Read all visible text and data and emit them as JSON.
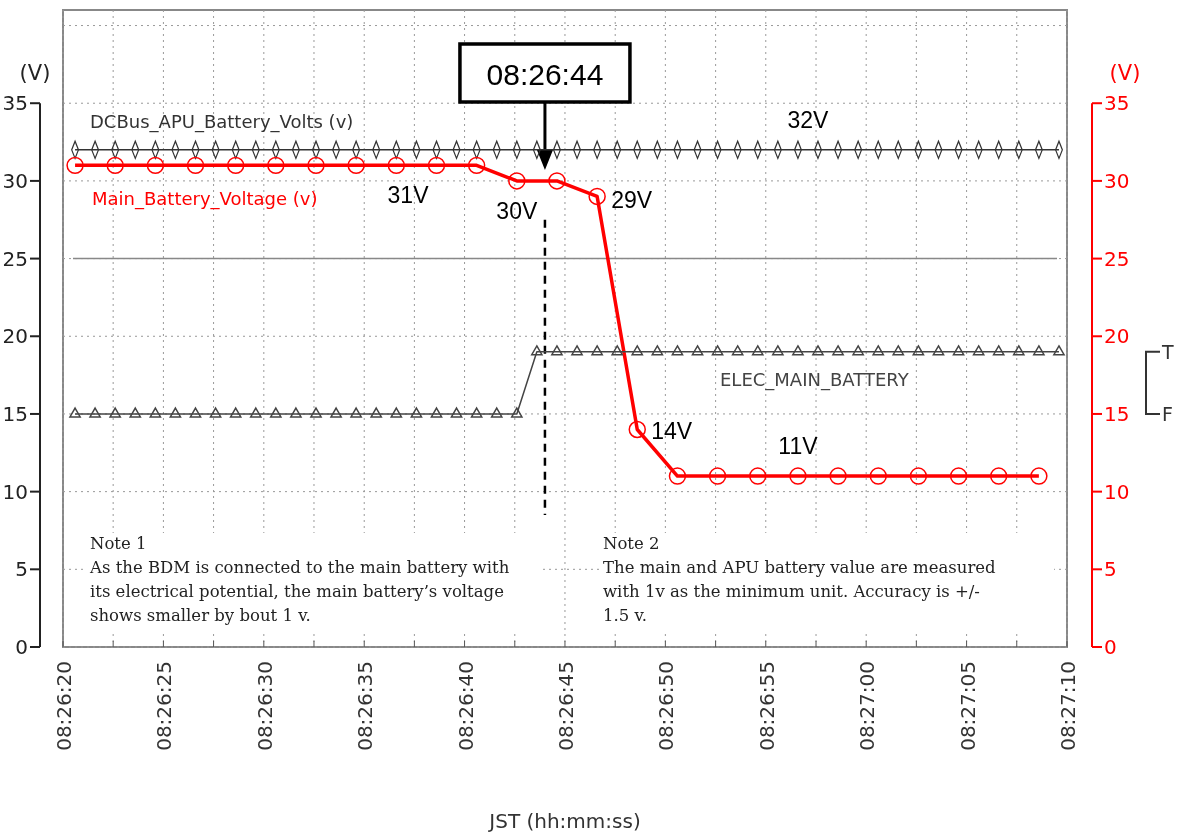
{
  "chart_data": {
    "type": "line",
    "xlabel": "JST (hh:mm:ss)",
    "ylabel": "(V)",
    "y2label": "(V)",
    "xlim": [
      8.438889,
      8.452778
    ],
    "xticks": [
      {
        "value": 8.438889,
        "label": "08:26:20"
      },
      {
        "value": 8.439583,
        "label": null
      },
      {
        "value": 8.440278,
        "label": "08:26:25"
      },
      {
        "value": 8.440972,
        "label": null
      },
      {
        "value": 8.441667,
        "label": "08:26:30"
      },
      {
        "value": 8.442361,
        "label": null
      },
      {
        "value": 8.443056,
        "label": "08:26:35"
      },
      {
        "value": 8.44375,
        "label": null
      },
      {
        "value": 8.444444,
        "label": "08:26:40"
      },
      {
        "value": 8.445139,
        "label": null
      },
      {
        "value": 8.445833,
        "label": "08:26:45"
      },
      {
        "value": 8.446528,
        "label": null
      },
      {
        "value": 8.447222,
        "label": "08:26:50"
      },
      {
        "value": 8.447917,
        "label": null
      },
      {
        "value": 8.448611,
        "label": "08:26:55"
      },
      {
        "value": 8.449306,
        "label": null
      },
      {
        "value": 8.45,
        "label": "08:27:00"
      },
      {
        "value": 8.450694,
        "label": null
      },
      {
        "value": 8.451389,
        "label": "08:27:05"
      },
      {
        "value": 8.452083,
        "label": null
      },
      {
        "value": 8.452778,
        "label": "08:27:10"
      }
    ],
    "ylim": [
      0,
      41
    ],
    "yticks": [
      0,
      5,
      10,
      15,
      20,
      25,
      30,
      35,
      {
        "value": 40,
        "label": null
      }
    ],
    "y2lim": [
      0,
      41
    ],
    "y2ticks": [
      0,
      5,
      10,
      15,
      20,
      25,
      30,
      35
    ],
    "grid": true,
    "series": [
      {
        "name": "DCBus_APU_Battery_Volts (v)",
        "color": "#333333",
        "marker": "diamond",
        "x": [
          8.439056,
          8.439333,
          8.439611,
          8.439889,
          8.440167,
          8.440444,
          8.440722,
          8.441,
          8.441278,
          8.441556,
          8.441833,
          8.442111,
          8.442389,
          8.442667,
          8.442944,
          8.443222,
          8.4435,
          8.443778,
          8.444056,
          8.444333,
          8.444611,
          8.444889,
          8.445167,
          8.445444,
          8.445722,
          8.446,
          8.446278,
          8.446556,
          8.446833,
          8.447111,
          8.447389,
          8.447667,
          8.447944,
          8.448222,
          8.4485,
          8.448778,
          8.449056,
          8.449333,
          8.449611,
          8.449889,
          8.450167,
          8.450444,
          8.450722,
          8.451,
          8.451278,
          8.451556,
          8.451833,
          8.452111,
          8.452389,
          8.452667
        ],
        "values": [
          32,
          32,
          32,
          32,
          32,
          32,
          32,
          32,
          32,
          32,
          32,
          32,
          32,
          32,
          32,
          32,
          32,
          32,
          32,
          32,
          32,
          32,
          32,
          32,
          32,
          32,
          32,
          32,
          32,
          32,
          32,
          32,
          32,
          32,
          32,
          32,
          32,
          32,
          32,
          32,
          32,
          32,
          32,
          32,
          32,
          32,
          32,
          32,
          32,
          32
        ]
      },
      {
        "name": "Main_Battery_Voltage (v)",
        "color": "#ff0000",
        "marker": "circle",
        "x": [
          8.439056,
          8.439611,
          8.440167,
          8.440722,
          8.441278,
          8.441833,
          8.442389,
          8.442944,
          8.4435,
          8.444056,
          8.444611,
          8.445167,
          8.445722,
          8.446278,
          8.446833,
          8.447389,
          8.447944,
          8.4485,
          8.449056,
          8.449611,
          8.450167,
          8.450722,
          8.451278,
          8.451833,
          8.452389
        ],
        "values": [
          31,
          31,
          31,
          31,
          31,
          31,
          31,
          31,
          31,
          31,
          31,
          30,
          30,
          29,
          14,
          11,
          11,
          11,
          11,
          11,
          11,
          11,
          11,
          11,
          11
        ]
      },
      {
        "name": "ELEC_MAIN_BATTERY",
        "color": "#444444",
        "marker": "triangle",
        "x": [
          8.439056,
          8.439333,
          8.439611,
          8.439889,
          8.440167,
          8.440444,
          8.440722,
          8.441,
          8.441278,
          8.441556,
          8.441833,
          8.442111,
          8.442389,
          8.442667,
          8.442944,
          8.443222,
          8.4435,
          8.443778,
          8.444056,
          8.444333,
          8.444611,
          8.444889,
          8.445167,
          8.445444,
          8.445722,
          8.446,
          8.446278,
          8.446556,
          8.446833,
          8.447111,
          8.447389,
          8.447667,
          8.447944,
          8.448222,
          8.4485,
          8.448778,
          8.449056,
          8.449333,
          8.449611,
          8.449889,
          8.450167,
          8.450444,
          8.450722,
          8.451,
          8.451278,
          8.451556,
          8.451833,
          8.452111,
          8.452389,
          8.452667
        ],
        "values": [
          15,
          15,
          15,
          15,
          15,
          15,
          15,
          15,
          15,
          15,
          15,
          15,
          15,
          15,
          15,
          15,
          15,
          15,
          15,
          15,
          15,
          15,
          15,
          19,
          19,
          19,
          19,
          19,
          19,
          19,
          19,
          19,
          19,
          19,
          19,
          19,
          19,
          19,
          19,
          19,
          19,
          19,
          19,
          19,
          19,
          19,
          19,
          19,
          19,
          19
        ]
      }
    ],
    "ref_lines": [
      {
        "axis": "y",
        "value": 25,
        "color": "#888888",
        "line_style": "solid"
      },
      {
        "axis": "x",
        "value": 8.445556,
        "label": "08:26:44",
        "color": "#000000",
        "line_style": "dashed"
      }
    ],
    "annotations": [
      {
        "text": "32V",
        "x": 8.449333,
        "y": 32
      },
      {
        "text": "31V",
        "x": 8.444056,
        "y": 31
      },
      {
        "text": "30V",
        "x": 8.445167,
        "y": 30
      },
      {
        "text": "29V",
        "x": 8.446278,
        "y": 29
      },
      {
        "text": "14V",
        "x": 8.446833,
        "y": 14
      },
      {
        "text": "11V",
        "x": 8.449056,
        "y": 11
      },
      "T",
      "F",
      "Note 1\nAs the BDM is connected to the main battery with\nits electrical potential,  the main battery’s voltage\nshows smaller by bout 1 v.",
      "Note 2\nThe main and APU battery value are measured\nwith 1v as the minimum unit.  Accuracy is +/-\n1.5 v."
    ]
  }
}
